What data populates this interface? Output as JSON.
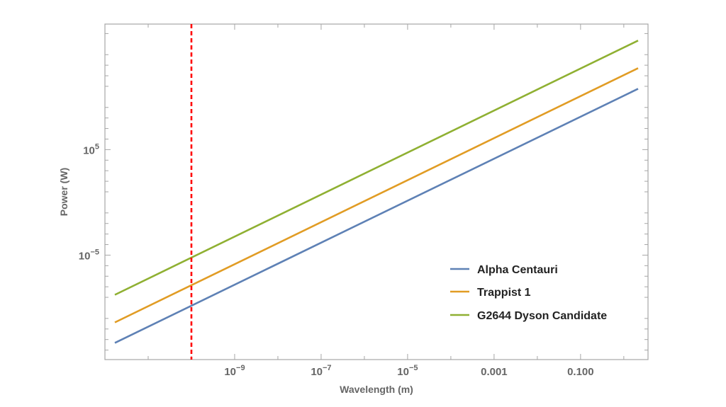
{
  "chart_data": {
    "type": "line",
    "title": "",
    "xlabel": "Wavelength (m)",
    "ylabel": "Power (W)",
    "xscale": "log",
    "yscale": "log",
    "xlim_log10": [
      -12,
      0.56
    ],
    "ylim_log10": [
      -14.9,
      16.9
    ],
    "grid": false,
    "legend_position": "lower right (inside plot)",
    "x_tick_labels": [
      {
        "log10": -9,
        "label": "10",
        "sup": "−9"
      },
      {
        "log10": -7,
        "label": "10",
        "sup": "−7"
      },
      {
        "log10": -5,
        "label": "10",
        "sup": "−5"
      },
      {
        "log10": -3,
        "label": "0.001",
        "sup": ""
      },
      {
        "log10": -1,
        "label": "0.100",
        "sup": ""
      }
    ],
    "y_tick_labels": [
      {
        "log10": 5,
        "label": "10",
        "sup": "5"
      },
      {
        "log10": -5,
        "label": "10",
        "sup": "−5"
      }
    ],
    "x_log10": [
      -11.77,
      0.33
    ],
    "series": [
      {
        "name": "Alpha Centauri",
        "color": "#5e81b5",
        "log10_x": [
          -11.77,
          0.33
        ],
        "log10_y": [
          -13.32,
          10.77
        ]
      },
      {
        "name": "Trappist 1",
        "color": "#e19c24",
        "log10_x": [
          -11.77,
          0.33
        ],
        "log10_y": [
          -11.38,
          12.72
        ]
      },
      {
        "name": "G2644 Dyson Candidate",
        "color": "#8fb032",
        "log10_x": [
          -11.77,
          0.33
        ],
        "log10_y": [
          -8.76,
          15.34
        ]
      }
    ],
    "annotations": [
      {
        "type": "vertical-dashed-line",
        "log10_x": -10,
        "color": "#ff0000"
      }
    ]
  },
  "axes": {
    "x_title": "Wavelength (m)",
    "y_title": "Power (W)"
  },
  "legend": {
    "items": [
      {
        "label": "Alpha Centauri",
        "color": "#5e81b5"
      },
      {
        "label": "Trappist 1",
        "color": "#e19c24"
      },
      {
        "label": "G2644 Dyson Candidate",
        "color": "#8fb032"
      }
    ]
  }
}
